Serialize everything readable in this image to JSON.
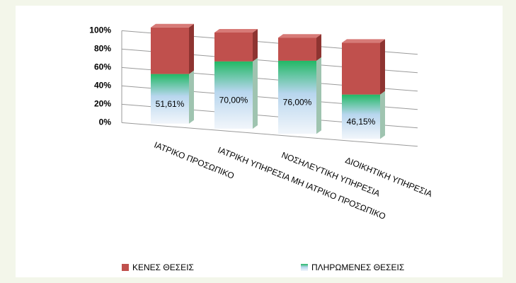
{
  "chart_data": {
    "type": "bar3d-stacked",
    "categories": [
      "ΙΑΤΡΙΚΟ ΠΡΟΣΩΠΙΚΟ",
      "ΙΑΤΡΙΚΗ ΥΠΗΡΕΣΙΑ ΜΗ ΙΑΤΡΙΚΟ ΠΡΟΣΩΠΙΚΟ",
      "ΝΟΣΗΛΕΥΤΙΚΗ ΥΠΗΡΕΣΙΑ",
      "ΔΙΟΙΚΗΤΙΚΗ ΥΠΗΡΕΣΙΑ"
    ],
    "series": [
      {
        "name": "ΠΛΗΡΩΜΕΝΕΣ ΘΕΣΕΙΣ",
        "color": "#22b865",
        "values": [
          51.61,
          70.0,
          76.0,
          46.15
        ],
        "value_labels": [
          "51,61%",
          "70,00%",
          "76,00%",
          "46,15%"
        ]
      },
      {
        "name": "ΚΕΝΕΣ ΘΕΣΕΙΣ",
        "color": "#c0504d",
        "values": [
          48.39,
          30.0,
          24.0,
          53.85
        ]
      }
    ],
    "ylim": [
      0,
      100
    ],
    "yticks": [
      {
        "value": 0,
        "label": "0%"
      },
      {
        "value": 20,
        "label": "20%"
      },
      {
        "value": 40,
        "label": "40%"
      },
      {
        "value": 60,
        "label": "60%"
      },
      {
        "value": 80,
        "label": "80%"
      },
      {
        "value": 100,
        "label": "100%"
      }
    ],
    "grid": true,
    "legend": "bottom"
  }
}
